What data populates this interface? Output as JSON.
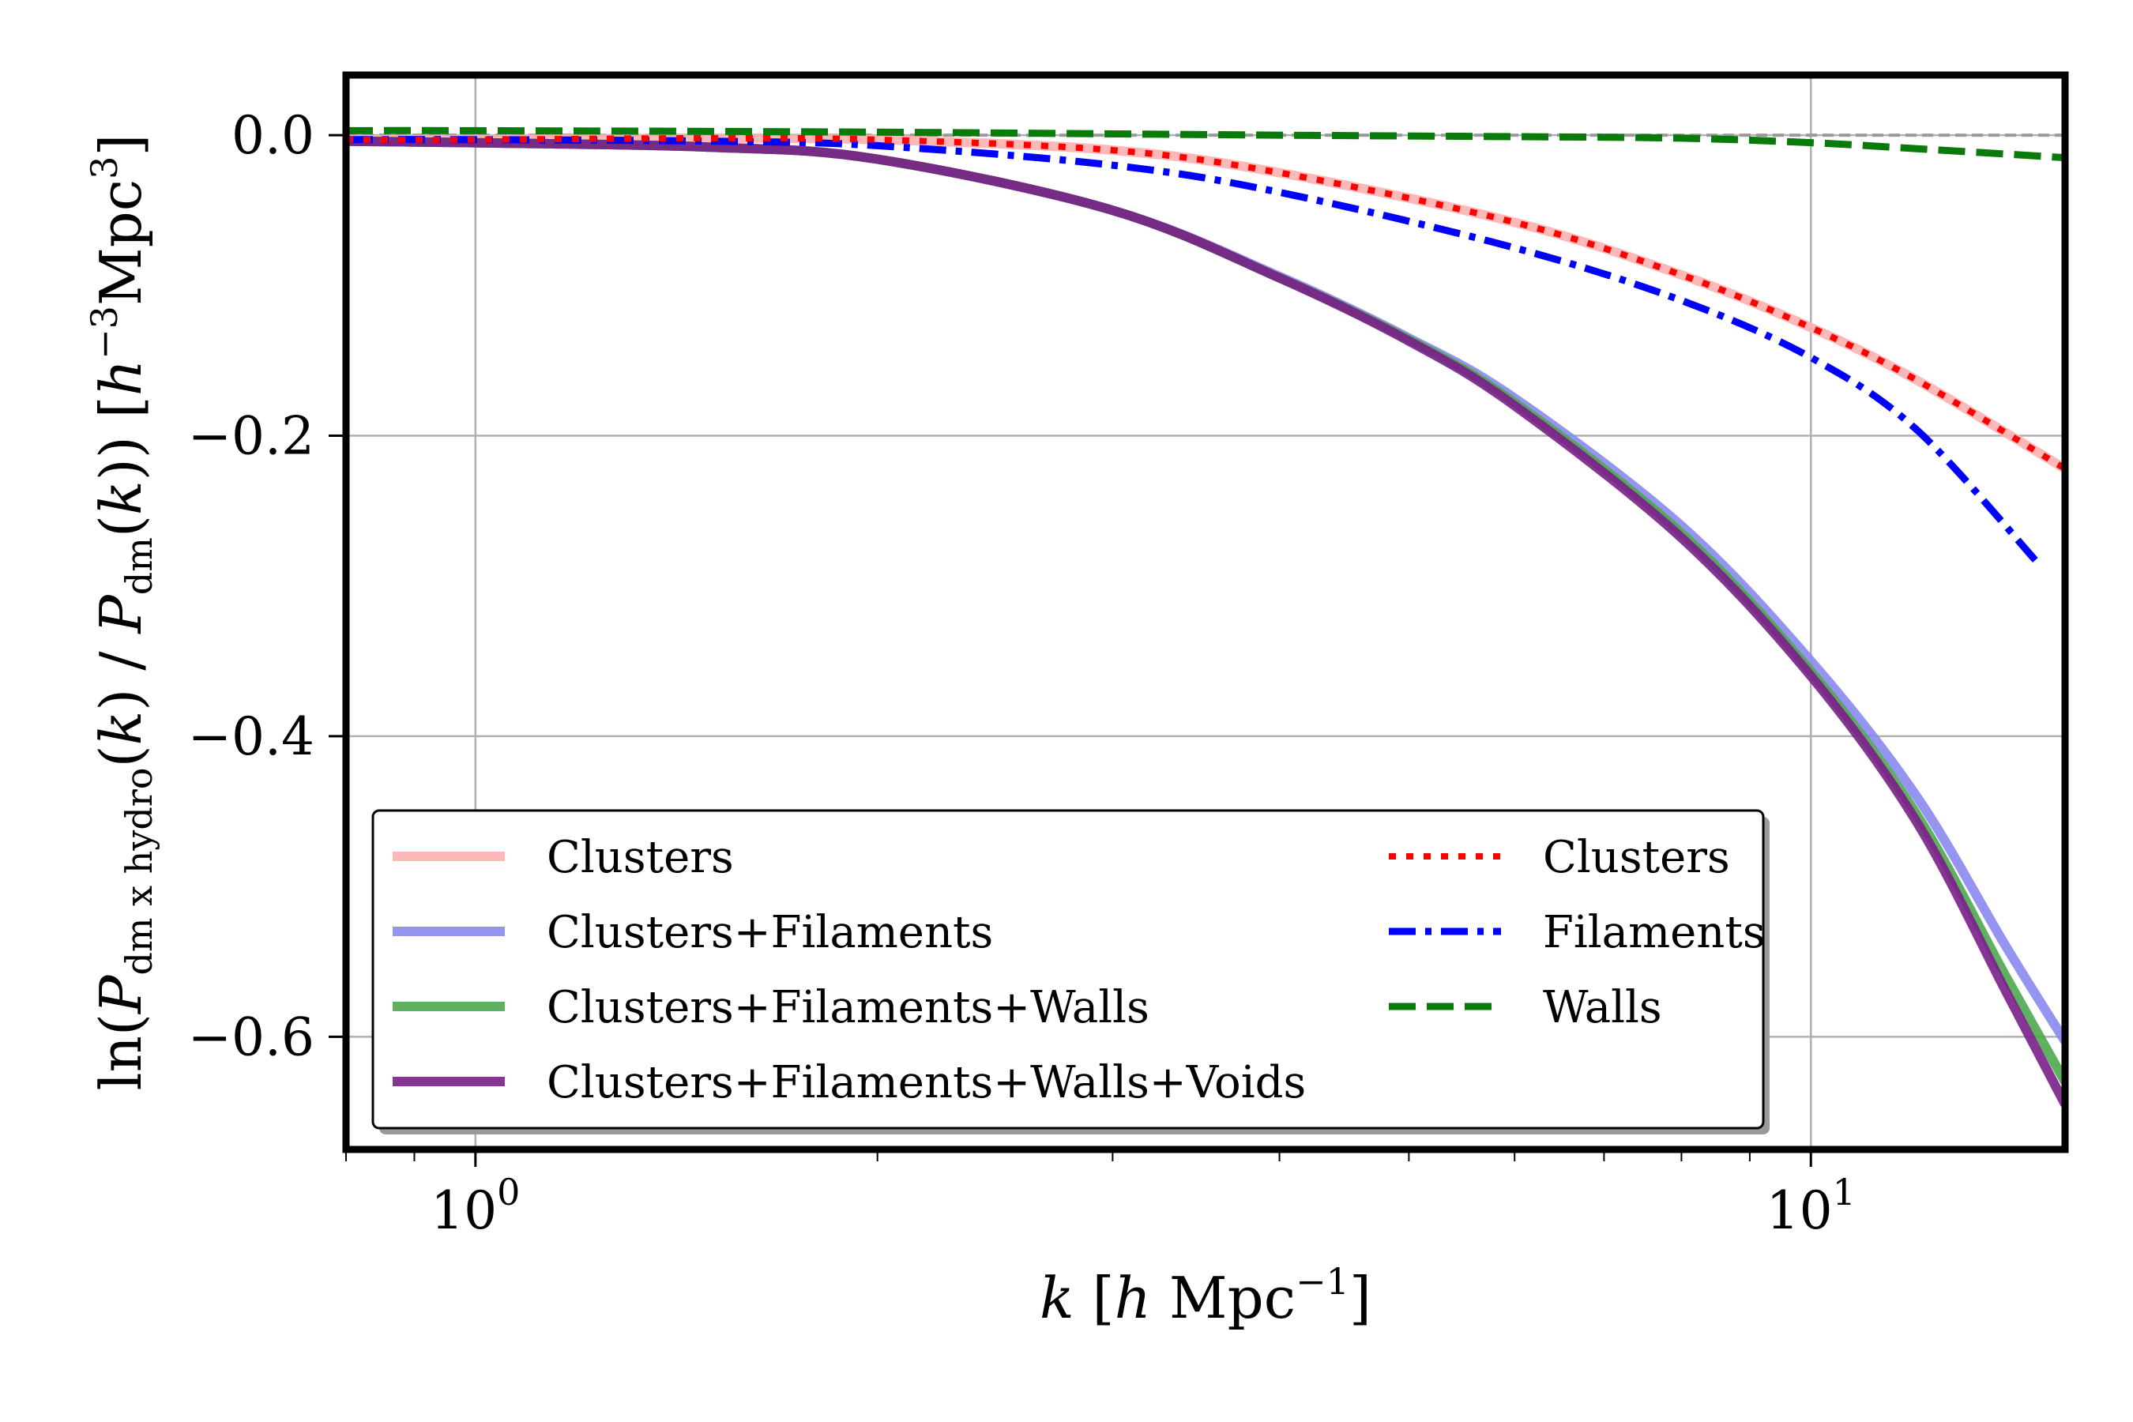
{
  "chart_data": {
    "type": "line",
    "xscale": "log",
    "xlim": [
      0.8,
      15.5
    ],
    "ylim": [
      -0.675,
      0.04
    ],
    "grid": true,
    "xlabel": {
      "var": "k",
      "open": " [",
      "unit_italic": "h",
      "unit": " Mpc",
      "sup": "−1",
      "close": "]"
    },
    "ylabel": {
      "pre": "ln(",
      "p1": "P",
      "sub1": "dm x hydro",
      "mid1": "(",
      "k1": "k",
      "mid2": ") / ",
      "p2": "P",
      "sub2": "dm",
      "mid3": "(",
      "k2": "k",
      "mid4": ")) [",
      "h": "h",
      "sup1": "−3",
      "unit": "Mpc",
      "sup2": "3",
      "close": "]"
    },
    "xticks": [
      {
        "value": 1,
        "base": "10",
        "exp": "0"
      },
      {
        "value": 10,
        "base": "10",
        "exp": "1"
      }
    ],
    "yticks": [
      {
        "value": 0.0,
        "label": "0.0"
      },
      {
        "value": -0.2,
        "label": "−0.2"
      },
      {
        "value": -0.4,
        "label": "−0.4"
      },
      {
        "value": -0.6,
        "label": "−0.6"
      }
    ],
    "legend_position": "lower-left",
    "reference_line": {
      "y": 0.0,
      "color": "#999999"
    },
    "series": [
      {
        "name": "Clusters",
        "color": "#ffb0b0",
        "style": "solid",
        "x": [
          0.8,
          1.0,
          1.5,
          2.0,
          3.0,
          4.0,
          6.0,
          8.0,
          10.0,
          12.0,
          15.5
        ],
        "y": [
          -0.003,
          -0.003,
          -0.002,
          -0.003,
          -0.01,
          -0.025,
          -0.058,
          -0.093,
          -0.128,
          -0.163,
          -0.222
        ]
      },
      {
        "name": "Clusters+Filaments",
        "color": "#8a8af0",
        "style": "solid",
        "x": [
          0.8,
          1.0,
          1.5,
          2.0,
          3.0,
          4.0,
          5.0,
          6.0,
          8.0,
          10.0,
          12.0,
          14.0,
          15.5
        ],
        "y": [
          -0.004,
          -0.005,
          -0.008,
          -0.016,
          -0.05,
          -0.094,
          -0.135,
          -0.175,
          -0.26,
          -0.35,
          -0.44,
          -0.54,
          -0.603
        ]
      },
      {
        "name": "Clusters+Filaments+Walls",
        "color": "#4ea84e",
        "style": "solid",
        "x": [
          0.8,
          1.0,
          1.5,
          2.0,
          3.0,
          4.0,
          5.0,
          6.0,
          8.0,
          10.0,
          12.0,
          14.0,
          15.5
        ],
        "y": [
          -0.004,
          -0.005,
          -0.008,
          -0.016,
          -0.05,
          -0.095,
          -0.136,
          -0.178,
          -0.265,
          -0.357,
          -0.452,
          -0.56,
          -0.63
        ]
      },
      {
        "name": "Clusters+Filaments+Walls+Voids",
        "color": "#7a1f8a",
        "style": "solid",
        "x": [
          0.8,
          1.0,
          1.5,
          2.0,
          3.0,
          4.0,
          5.0,
          6.0,
          8.0,
          10.0,
          12.0,
          14.0,
          15.5
        ],
        "y": [
          -0.004,
          -0.005,
          -0.008,
          -0.016,
          -0.05,
          -0.095,
          -0.137,
          -0.18,
          -0.268,
          -0.36,
          -0.457,
          -0.57,
          -0.645
        ]
      },
      {
        "name": "Clusters",
        "color": "#ff0000",
        "style": "dotted",
        "x": [
          0.8,
          1.0,
          1.5,
          2.0,
          3.0,
          4.0,
          6.0,
          8.0,
          10.0,
          12.0,
          15.5
        ],
        "y": [
          -0.003,
          -0.003,
          -0.002,
          -0.003,
          -0.01,
          -0.025,
          -0.058,
          -0.093,
          -0.128,
          -0.163,
          -0.222
        ]
      },
      {
        "name": "Filaments",
        "color": "#0000ff",
        "style": "dashdot",
        "x": [
          0.8,
          1.0,
          1.5,
          2.0,
          3.0,
          4.0,
          6.0,
          8.0,
          10.0,
          12.0,
          14.8
        ],
        "y": [
          -0.003,
          -0.003,
          -0.004,
          -0.007,
          -0.02,
          -0.038,
          -0.075,
          -0.11,
          -0.148,
          -0.196,
          -0.285
        ]
      },
      {
        "name": "Walls",
        "color": "#0a7a0a",
        "style": "dashed",
        "x": [
          0.8,
          1.0,
          2.0,
          4.0,
          6.0,
          8.0,
          10.0,
          12.0,
          15.5
        ],
        "y": [
          0.003,
          0.003,
          0.002,
          0.0,
          -0.001,
          -0.002,
          -0.005,
          -0.009,
          -0.015
        ]
      }
    ]
  }
}
